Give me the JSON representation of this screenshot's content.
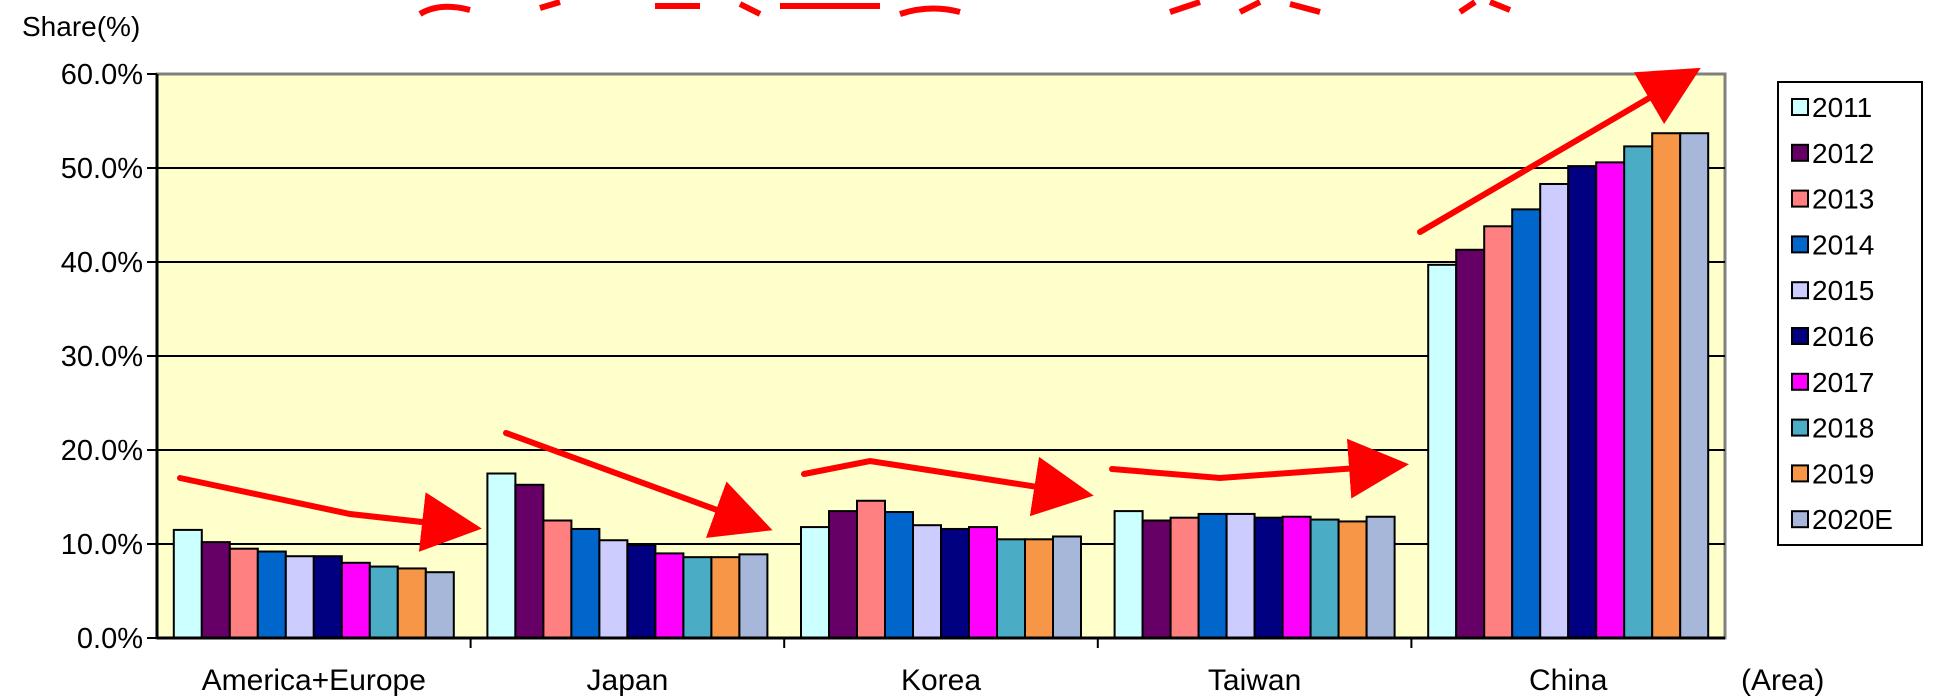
{
  "chart_data": {
    "type": "bar",
    "ylabel": "Share(%)",
    "xlabel": "(Area)",
    "ylim": [
      0,
      60
    ],
    "yticks": [
      "0.0%",
      "10.0%",
      "20.0%",
      "30.0%",
      "40.0%",
      "50.0%",
      "60.0%"
    ],
    "categories": [
      "America+Europe",
      "Japan",
      "Korea",
      "Taiwan",
      "China"
    ],
    "grid": true,
    "legend_position": "right",
    "plot_background": "#ffffcc",
    "trend_arrow_color": "#ff0000",
    "series": [
      {
        "name": "2011",
        "color": "#ccffff",
        "values": [
          11.5,
          17.5,
          11.8,
          13.5,
          39.7
        ]
      },
      {
        "name": "2012",
        "color": "#660066",
        "values": [
          10.2,
          16.3,
          13.5,
          12.5,
          41.3
        ]
      },
      {
        "name": "2013",
        "color": "#ff8080",
        "values": [
          9.5,
          12.5,
          14.6,
          12.8,
          43.8
        ]
      },
      {
        "name": "2014",
        "color": "#0066cc",
        "values": [
          9.2,
          11.6,
          13.4,
          13.2,
          45.6
        ]
      },
      {
        "name": "2015",
        "color": "#ccccff",
        "values": [
          8.7,
          10.4,
          12.0,
          13.2,
          48.3
        ]
      },
      {
        "name": "2016",
        "color": "#000080",
        "values": [
          8.7,
          9.9,
          11.6,
          12.8,
          50.2
        ]
      },
      {
        "name": "2017",
        "color": "#ff00ff",
        "values": [
          8.0,
          9.0,
          11.8,
          12.9,
          50.6
        ]
      },
      {
        "name": "2018",
        "color": "#4bacc6",
        "values": [
          7.6,
          8.6,
          10.5,
          12.6,
          52.3
        ]
      },
      {
        "name": "2019",
        "color": "#f79646",
        "values": [
          7.4,
          8.6,
          10.5,
          12.4,
          53.7
        ]
      },
      {
        "name": "2020E",
        "color": "#a6b7d9",
        "values": [
          7.0,
          8.9,
          10.8,
          12.9,
          53.7
        ]
      }
    ]
  }
}
